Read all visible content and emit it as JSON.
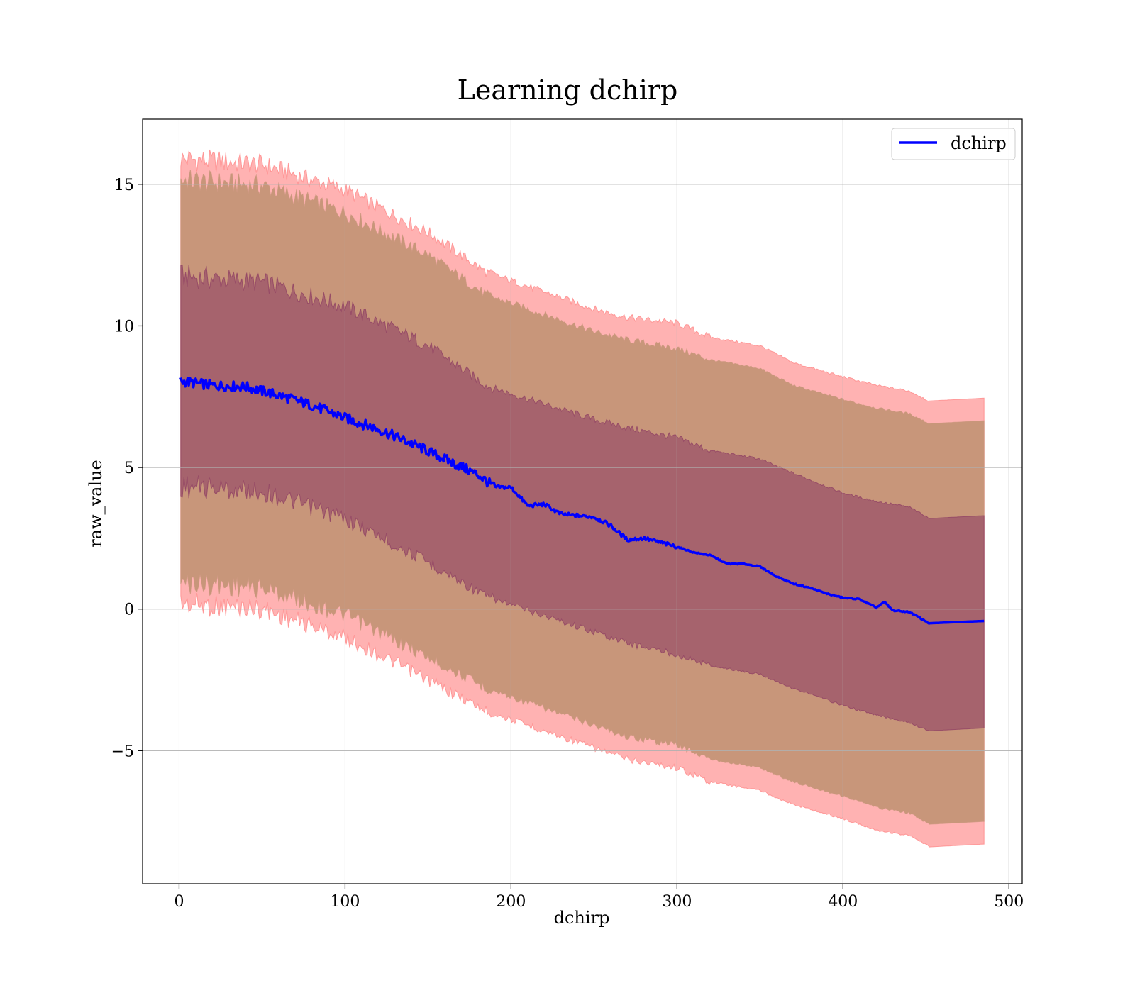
{
  "chart_data": {
    "type": "line",
    "title": "Learning dchirp",
    "xlabel": "dchirp",
    "ylabel": "raw_value",
    "xlim": [
      -22,
      508
    ],
    "ylim": [
      -9.7,
      17.3
    ],
    "xticks": [
      0,
      100,
      200,
      300,
      400,
      500
    ],
    "yticks": [
      -5,
      0,
      5,
      10,
      15
    ],
    "xtick_labels": [
      "0",
      "100",
      "200",
      "300",
      "400",
      "500"
    ],
    "ytick_labels": [
      "−5",
      "0",
      "5",
      "10",
      "15"
    ],
    "grid": true,
    "legend": {
      "position": "top-right",
      "entries": [
        "dchirp"
      ]
    },
    "colors": {
      "line": "#0000ff",
      "outer_band": "#ff7f7f",
      "inner_band": "#8b3a62",
      "overlap_mid": "#c8967a"
    },
    "series": [
      {
        "name": "dchirp",
        "kind": "line",
        "x": [
          1,
          20,
          40,
          60,
          80,
          100,
          120,
          140,
          160,
          180,
          190,
          200,
          210,
          220,
          230,
          240,
          250,
          260,
          270,
          280,
          290,
          300,
          310,
          320,
          330,
          340,
          350,
          360,
          370,
          380,
          390,
          400,
          410,
          420,
          425,
          430,
          440,
          452,
          485
        ],
        "y": [
          8.05,
          7.9,
          7.85,
          7.55,
          7.2,
          6.75,
          6.35,
          5.85,
          5.3,
          4.75,
          4.3,
          4.3,
          3.65,
          3.7,
          3.35,
          3.3,
          3.25,
          2.95,
          2.45,
          2.5,
          2.35,
          2.2,
          2.0,
          1.9,
          1.6,
          1.6,
          1.5,
          1.15,
          0.9,
          0.75,
          0.55,
          0.4,
          0.35,
          0.05,
          0.25,
          -0.05,
          -0.1,
          -0.5,
          -0.42
        ]
      },
      {
        "name": "",
        "kind": "band-outer",
        "x": [
          1,
          50,
          100,
          150,
          185,
          200,
          250,
          270,
          300,
          320,
          350,
          370,
          400,
          420,
          440,
          452,
          485
        ],
        "upper": [
          15.9,
          15.7,
          14.8,
          13.3,
          11.9,
          11.6,
          10.6,
          10.3,
          10.1,
          9.6,
          9.3,
          8.7,
          8.2,
          7.9,
          7.7,
          7.35,
          7.45
        ],
        "lower": [
          0.2,
          0.0,
          -1.0,
          -2.5,
          -3.6,
          -3.9,
          -4.9,
          -5.3,
          -5.6,
          -6.1,
          -6.4,
          -6.9,
          -7.4,
          -7.8,
          -8.0,
          -8.4,
          -8.3
        ]
      },
      {
        "name": "",
        "kind": "band-inner",
        "x": [
          1,
          50,
          100,
          150,
          185,
          200,
          250,
          270,
          300,
          320,
          350,
          370,
          400,
          420,
          440,
          452,
          485
        ],
        "upper": [
          11.75,
          11.55,
          10.7,
          9.3,
          7.9,
          7.6,
          6.7,
          6.4,
          6.05,
          5.6,
          5.3,
          4.8,
          4.1,
          3.8,
          3.6,
          3.2,
          3.3
        ],
        "lower": [
          4.35,
          4.15,
          3.2,
          1.65,
          0.45,
          0.15,
          -0.8,
          -1.2,
          -1.6,
          -2.0,
          -2.3,
          -2.8,
          -3.4,
          -3.75,
          -4.0,
          -4.3,
          -4.2
        ]
      },
      {
        "name": "",
        "kind": "band-mid",
        "x": [
          1,
          50,
          100,
          150,
          185,
          200,
          250,
          270,
          300,
          320,
          350,
          370,
          400,
          420,
          440,
          452,
          485
        ],
        "upper": [
          15.15,
          14.95,
          14.0,
          12.5,
          11.1,
          10.8,
          9.8,
          9.5,
          9.2,
          8.8,
          8.5,
          7.9,
          7.4,
          7.1,
          6.9,
          6.55,
          6.65
        ],
        "lower": [
          0.95,
          0.75,
          -0.2,
          -1.7,
          -2.8,
          -3.1,
          -4.1,
          -4.5,
          -4.8,
          -5.3,
          -5.6,
          -6.1,
          -6.6,
          -7.0,
          -7.2,
          -7.6,
          -7.5
        ]
      }
    ]
  }
}
